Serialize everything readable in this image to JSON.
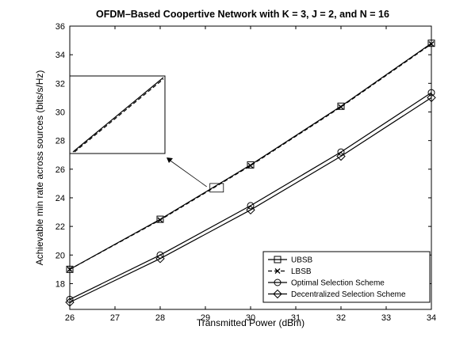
{
  "chart_data": {
    "type": "line",
    "title": "OFDM–Based Coopertive Network with K = 3, J = 2, and N = 16",
    "xlabel": "Transmitted Power (dBm)",
    "ylabel": "Achievable min rate across sources (bits/s/Hz)",
    "xlim": [
      26,
      34
    ],
    "ylim": [
      16.2,
      36
    ],
    "x_ticks": [
      26,
      27,
      28,
      29,
      30,
      31,
      32,
      33,
      34
    ],
    "y_ticks": [
      18,
      20,
      22,
      24,
      26,
      28,
      30,
      32,
      34,
      36
    ],
    "grid": false,
    "legend_position": "bottom-right",
    "x": [
      26,
      28,
      30,
      32,
      34
    ],
    "series": [
      {
        "name": "UBSB",
        "marker": "square",
        "line": "solid",
        "values": [
          19.0,
          22.5,
          26.3,
          30.4,
          34.8
        ]
      },
      {
        "name": "LBSB",
        "marker": "x",
        "line": "dashed",
        "values": [
          19.0,
          22.45,
          26.25,
          30.35,
          34.75
        ]
      },
      {
        "name": "Optimal Selection Scheme",
        "marker": "circle",
        "line": "solid",
        "values": [
          16.9,
          20.0,
          23.45,
          27.2,
          31.35
        ]
      },
      {
        "name": "Decentralized Selection Scheme",
        "marker": "diamond",
        "line": "solid",
        "values": [
          16.7,
          19.75,
          23.15,
          26.9,
          31.0
        ]
      }
    ],
    "inset": {
      "description_free": true,
      "zoom_x": [
        29.1,
        29.4
      ],
      "zoom_y": [
        24.4,
        25.0
      ]
    }
  }
}
